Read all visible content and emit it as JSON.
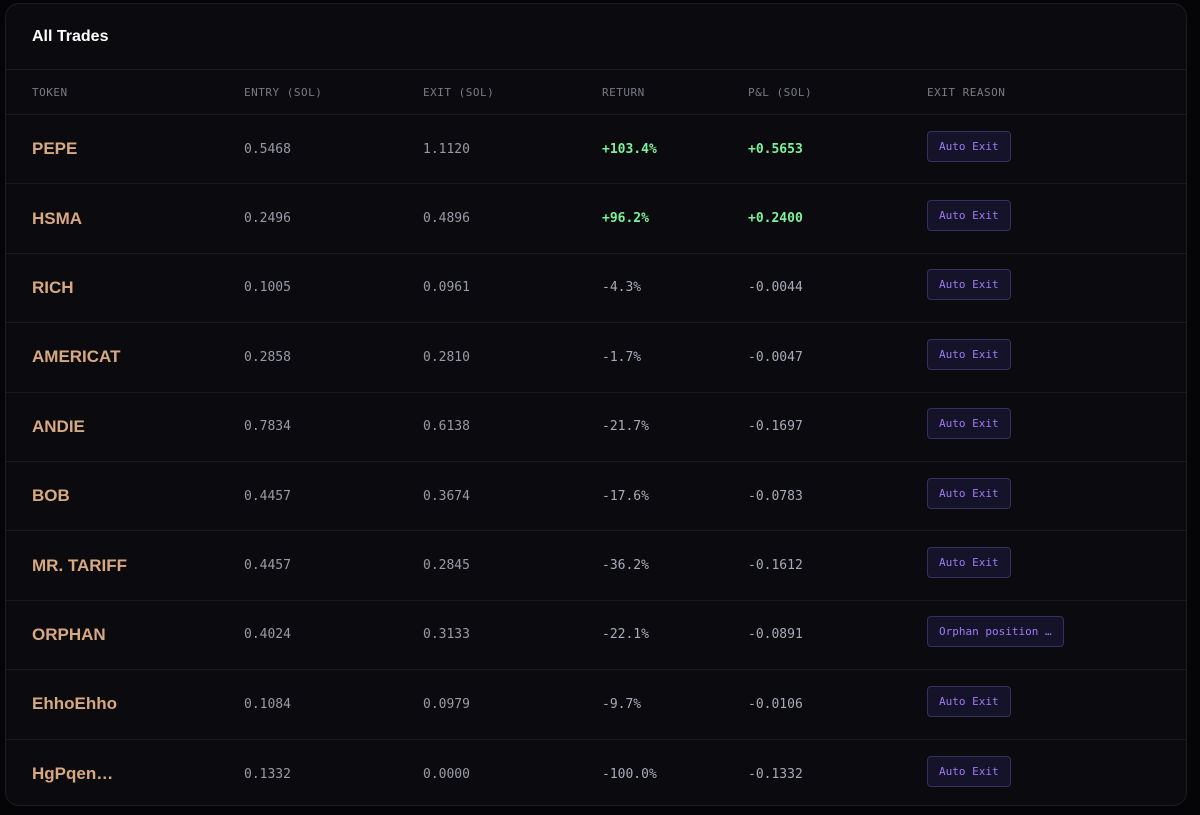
{
  "panel": {
    "title": "All Trades"
  },
  "columns": {
    "token": "TOKEN",
    "entry": "ENTRY (SOL)",
    "exit": "EXIT (SOL)",
    "return": "RETURN",
    "pnl": "P&L (SOL)",
    "reason": "EXIT REASON"
  },
  "colors": {
    "positive": "#7cf29a",
    "negative": "#a8aab8",
    "token": "#d8a880",
    "badge": "#9b7bf0"
  },
  "trades": [
    {
      "token": "PEPE",
      "entry": "0.5468",
      "exit": "1.1120",
      "return": "+103.4%",
      "pnl": "+0.5653",
      "reason": "Auto Exit"
    },
    {
      "token": "HSMA",
      "entry": "0.2496",
      "exit": "0.4896",
      "return": "+96.2%",
      "pnl": "+0.2400",
      "reason": "Auto Exit"
    },
    {
      "token": "RICH",
      "entry": "0.1005",
      "exit": "0.0961",
      "return": "-4.3%",
      "pnl": "-0.0044",
      "reason": "Auto Exit"
    },
    {
      "token": "AMERICAT",
      "entry": "0.2858",
      "exit": "0.2810",
      "return": "-1.7%",
      "pnl": "-0.0047",
      "reason": "Auto Exit"
    },
    {
      "token": "ANDIE",
      "entry": "0.7834",
      "exit": "0.6138",
      "return": "-21.7%",
      "pnl": "-0.1697",
      "reason": "Auto Exit"
    },
    {
      "token": "BOB",
      "entry": "0.4457",
      "exit": "0.3674",
      "return": "-17.6%",
      "pnl": "-0.0783",
      "reason": "Auto Exit"
    },
    {
      "token": "MR. TARIFF",
      "entry": "0.4457",
      "exit": "0.2845",
      "return": "-36.2%",
      "pnl": "-0.1612",
      "reason": "Auto Exit"
    },
    {
      "token": "ORPHAN",
      "entry": "0.4024",
      "exit": "0.3133",
      "return": "-22.1%",
      "pnl": "-0.0891",
      "reason": "Orphan position …"
    },
    {
      "token": "EhhoEhho",
      "entry": "0.1084",
      "exit": "0.0979",
      "return": "-9.7%",
      "pnl": "-0.0106",
      "reason": "Auto Exit"
    },
    {
      "token": "HgPqen…",
      "entry": "0.1332",
      "exit": "0.0000",
      "return": "-100.0%",
      "pnl": "-0.1332",
      "reason": "Auto Exit"
    }
  ]
}
